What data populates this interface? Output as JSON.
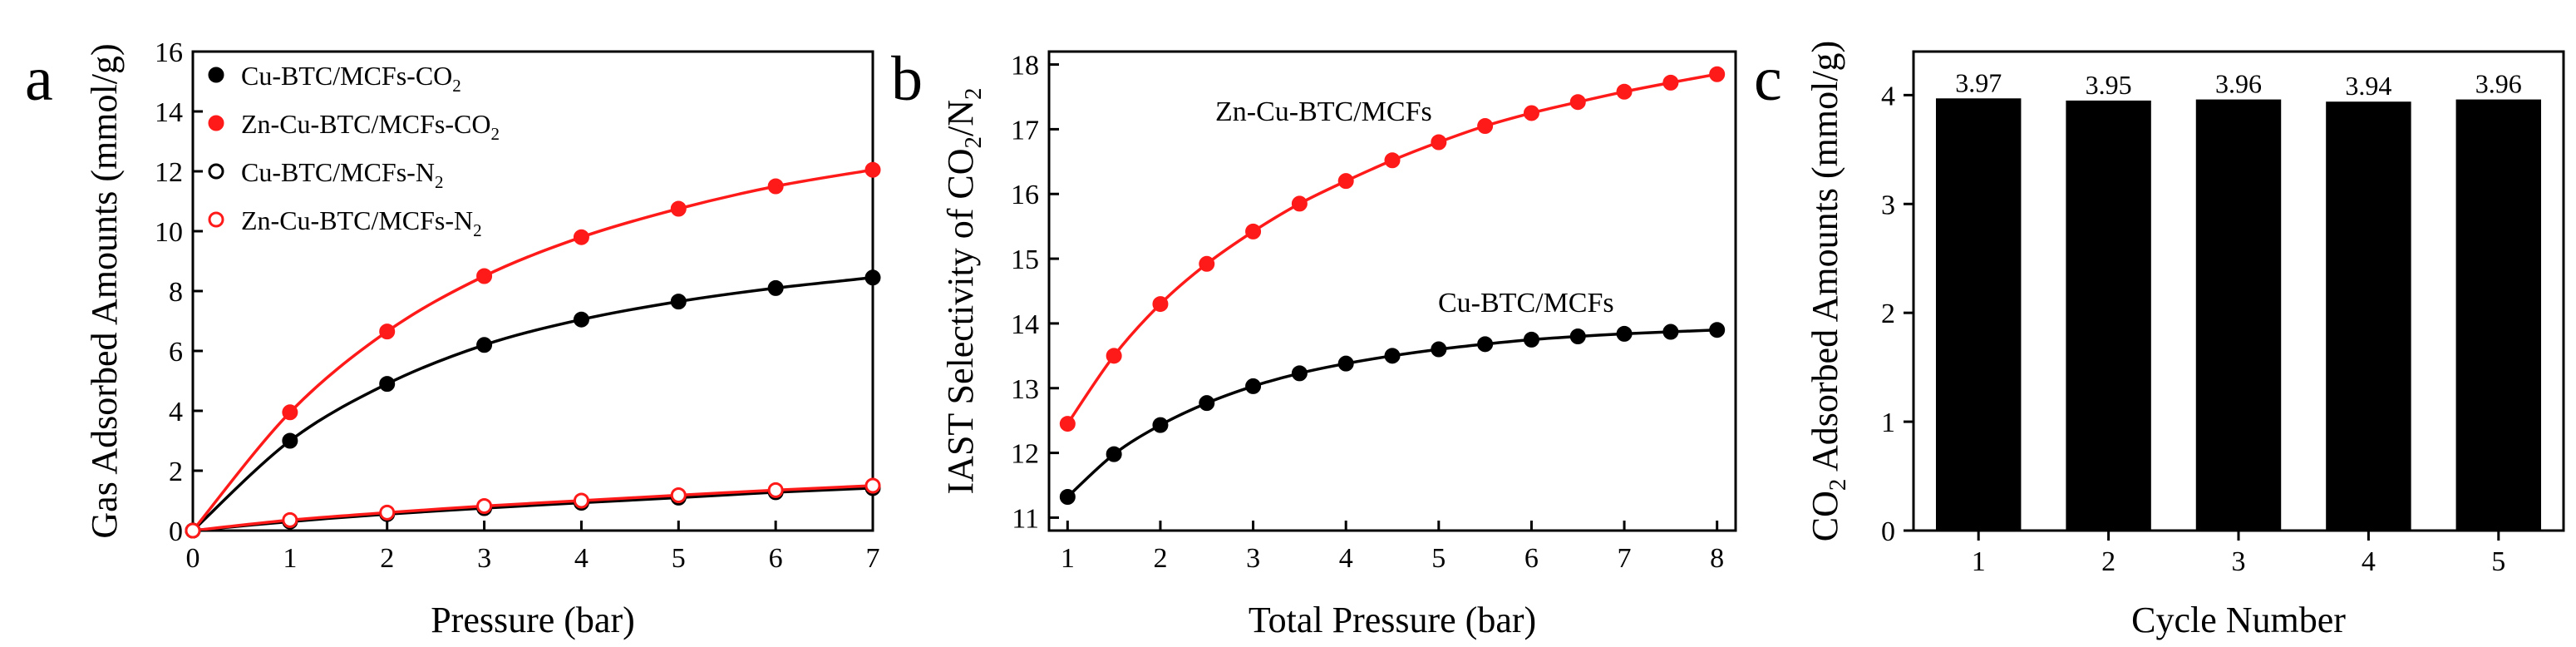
{
  "chart_data": [
    {
      "panel": "a",
      "type": "line",
      "xlabel": "Pressure (bar)",
      "ylabel": "Gas Adsorbed Amounts (mmol/g)",
      "xlim": [
        0,
        7
      ],
      "ylim": [
        0,
        16
      ],
      "xticks": [
        "0",
        "1",
        "2",
        "3",
        "4",
        "5",
        "6",
        "7"
      ],
      "yticks": [
        "0",
        "2",
        "4",
        "6",
        "8",
        "10",
        "12",
        "14",
        "16"
      ],
      "legend_position": "top-left",
      "series": [
        {
          "name": "Cu-BTC/MCFs-CO",
          "sub": "2",
          "color": "#000000",
          "marker": "filled",
          "x": [
            0,
            1,
            2,
            3,
            4,
            5,
            6,
            7
          ],
          "y": [
            0,
            3.0,
            4.9,
            6.2,
            7.05,
            7.65,
            8.1,
            8.45
          ]
        },
        {
          "name": "Zn-Cu-BTC/MCFs-CO",
          "sub": "2",
          "color": "#ff1a1a",
          "marker": "filled",
          "x": [
            0,
            1,
            2,
            3,
            4,
            5,
            6,
            7
          ],
          "y": [
            0,
            3.95,
            6.65,
            8.5,
            9.8,
            10.75,
            11.5,
            12.05
          ]
        },
        {
          "name": "Cu-BTC/MCFs-N",
          "sub": "2",
          "color": "#000000",
          "marker": "open",
          "x": [
            0,
            1,
            2,
            3,
            4,
            5,
            6,
            7
          ],
          "y": [
            0,
            0.3,
            0.55,
            0.75,
            0.93,
            1.1,
            1.28,
            1.42
          ]
        },
        {
          "name": "Zn-Cu-BTC/MCFs-N",
          "sub": "2",
          "color": "#ff1a1a",
          "marker": "open",
          "x": [
            0,
            1,
            2,
            3,
            4,
            5,
            6,
            7
          ],
          "y": [
            0,
            0.35,
            0.6,
            0.82,
            1.0,
            1.18,
            1.35,
            1.5
          ]
        }
      ]
    },
    {
      "panel": "b",
      "type": "line",
      "xlabel": "Total Pressure (bar)",
      "ylabel": "IAST Selectivity of CO",
      "ylabel_sub1": "2",
      "ylabel_mid": "/N",
      "ylabel_sub2": "2",
      "xlim": [
        0.8,
        8.2
      ],
      "ylim": [
        10.8,
        18.2
      ],
      "xticks": [
        "1",
        "2",
        "3",
        "4",
        "5",
        "6",
        "7",
        "8"
      ],
      "yticks": [
        "11",
        "12",
        "13",
        "14",
        "15",
        "16",
        "17",
        "18"
      ],
      "series": [
        {
          "name": "Zn-Cu-BTC/MCFs",
          "color": "#ff1a1a",
          "x": [
            1,
            1.5,
            2,
            2.5,
            3,
            3.5,
            4,
            4.5,
            5,
            5.5,
            6,
            6.5,
            7,
            7.5,
            8
          ],
          "y": [
            12.45,
            13.5,
            14.3,
            14.92,
            15.42,
            15.85,
            16.2,
            16.52,
            16.8,
            17.05,
            17.25,
            17.42,
            17.58,
            17.72,
            17.85
          ]
        },
        {
          "name": "Cu-BTC/MCFs",
          "color": "#000000",
          "x": [
            1,
            1.5,
            2,
            2.5,
            3,
            3.5,
            4,
            4.5,
            5,
            5.5,
            6,
            6.5,
            7,
            7.5,
            8
          ],
          "y": [
            11.32,
            11.98,
            12.43,
            12.77,
            13.03,
            13.23,
            13.38,
            13.5,
            13.6,
            13.68,
            13.75,
            13.8,
            13.84,
            13.87,
            13.9
          ]
        }
      ]
    },
    {
      "panel": "c",
      "type": "bar",
      "xlabel": "Cycle Number",
      "ylabel_pre": "CO",
      "ylabel_sub": "2",
      "ylabel_post": " Adsorbed Amounts (mmol/g)",
      "categories": [
        "1",
        "2",
        "3",
        "4",
        "5"
      ],
      "values": [
        3.97,
        3.95,
        3.96,
        3.94,
        3.96
      ],
      "labels": [
        "3.97",
        "3.95",
        "3.96",
        "3.94",
        "3.96"
      ],
      "ylim": [
        0,
        4.4
      ],
      "yticks": [
        "0",
        "1",
        "2",
        "3",
        "4"
      ],
      "color": "#000000"
    }
  ]
}
